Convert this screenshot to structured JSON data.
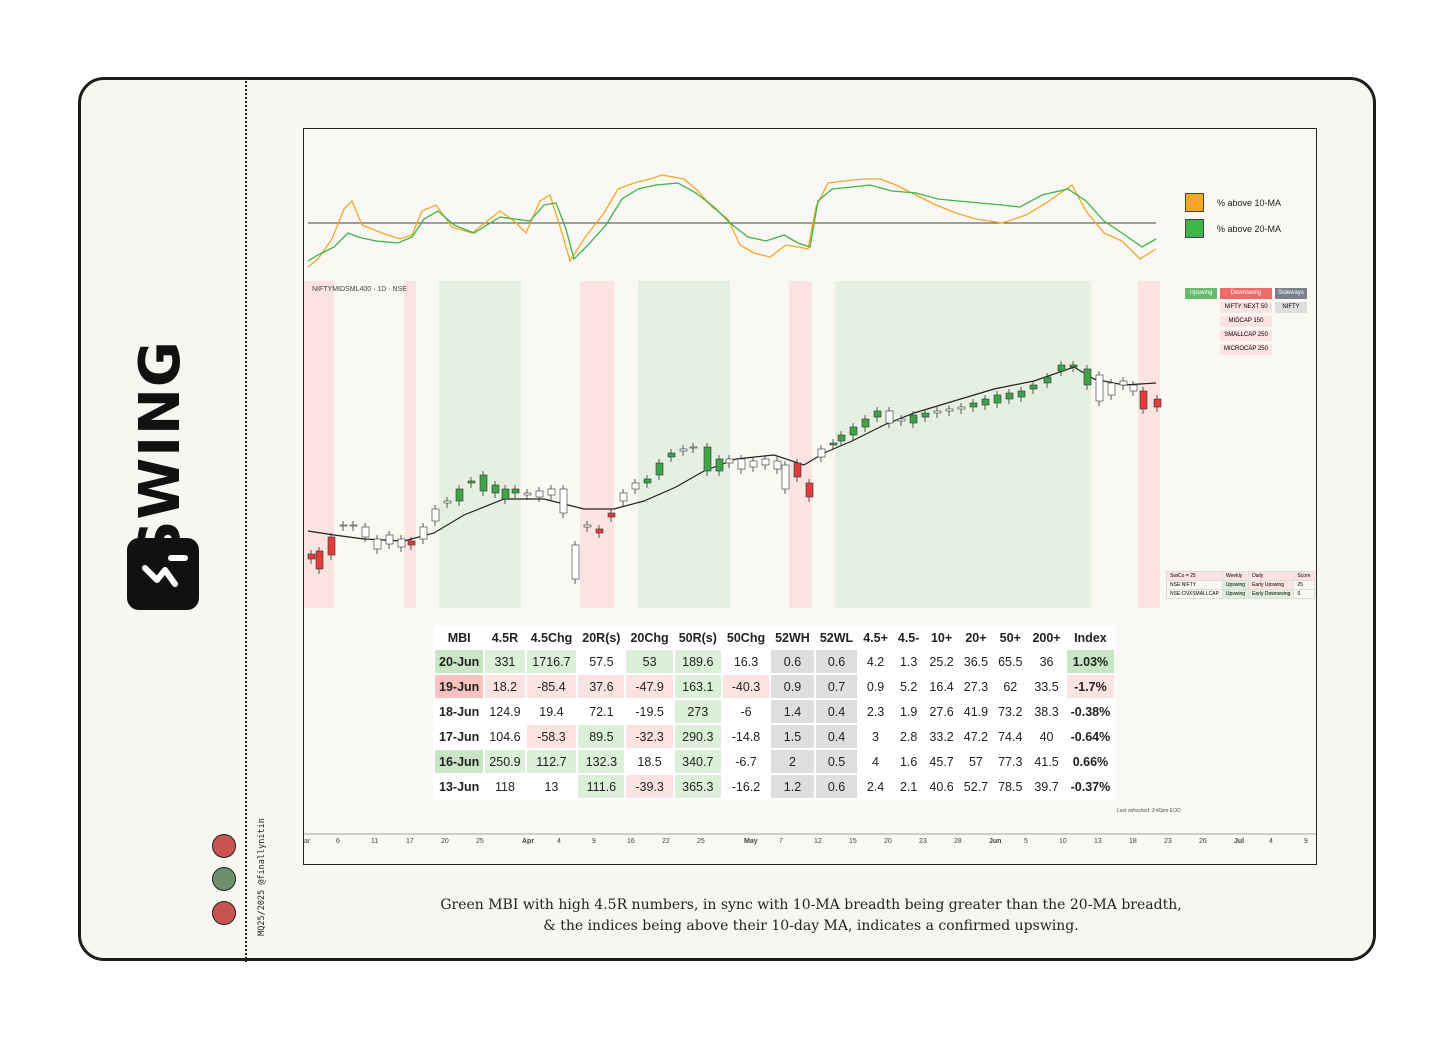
{
  "sidebar": {
    "title": "SWING",
    "credit": "MQ25/2025 @finallynitin",
    "dots": [
      "#c9544f",
      "#6e8f6a",
      "#c9544f"
    ],
    "logo_icon": "swing-logo"
  },
  "chart": {
    "symbol": "NIFTYMIDSML400 · 1D · NSE",
    "legend": [
      {
        "label": "% above 10-MA",
        "color": "#f5a623"
      },
      {
        "label": "% above 20-MA",
        "color": "#3db54a"
      }
    ],
    "regime": {
      "headers": [
        {
          "label": "Upswing",
          "color": "#66bb6a"
        },
        {
          "label": "Downswing",
          "color": "#ef6b6b"
        },
        {
          "label": "Sideways",
          "color": "#7a7f8c"
        }
      ],
      "downswing": [
        "NIFTY NEXT 50",
        "MIDCAP 150",
        "SMALLCAP 250",
        "MICROCAP 250"
      ],
      "sideways": [
        "NIFTY"
      ]
    },
    "swico": {
      "header": [
        "SwiCo = 25",
        "Weekly",
        "Daily",
        "Score"
      ],
      "rows": [
        [
          "NSE:NIFTY",
          "Upswing",
          "Early Upswing",
          "25"
        ],
        [
          "NSE:CNXSMALLCAP",
          "Upswing",
          "Early Downswing",
          "0"
        ]
      ]
    },
    "xaxis": [
      {
        "t": "ar",
        "x": 4
      },
      {
        "t": "6",
        "x": 36
      },
      {
        "t": "11",
        "x": 71
      },
      {
        "t": "17",
        "x": 106
      },
      {
        "t": "20",
        "x": 141
      },
      {
        "t": "25",
        "x": 176
      },
      {
        "t": "Apr",
        "x": 222,
        "b": true
      },
      {
        "t": "4",
        "x": 257
      },
      {
        "t": "9",
        "x": 292
      },
      {
        "t": "16",
        "x": 327
      },
      {
        "t": "22",
        "x": 362
      },
      {
        "t": "25",
        "x": 397
      },
      {
        "t": "May",
        "x": 444,
        "b": true
      },
      {
        "t": "7",
        "x": 479
      },
      {
        "t": "12",
        "x": 514
      },
      {
        "t": "15",
        "x": 549
      },
      {
        "t": "20",
        "x": 584
      },
      {
        "t": "23",
        "x": 619
      },
      {
        "t": "28",
        "x": 654
      },
      {
        "t": "Jun",
        "x": 689,
        "b": true
      },
      {
        "t": "5",
        "x": 724
      },
      {
        "t": "10",
        "x": 759
      },
      {
        "t": "13",
        "x": 794
      },
      {
        "t": "18",
        "x": 829
      },
      {
        "t": "23",
        "x": 864
      },
      {
        "t": "26",
        "x": 899
      },
      {
        "t": "Jul",
        "x": 934,
        "b": true
      },
      {
        "t": "4",
        "x": 969
      },
      {
        "t": "9",
        "x": 1004
      }
    ],
    "refreshed": "Last refreshed: 3:40pm EOD"
  },
  "table": {
    "headers": [
      "MBI",
      "4.5R",
      "4.5Chg",
      "20R(s)",
      "20Chg",
      "50R(s)",
      "50Chg",
      "52WH",
      "52WL",
      "4.5+",
      "4.5-",
      "10+",
      "20+",
      "50+",
      "200+",
      "Index"
    ],
    "rows": [
      [
        "20-Jun",
        "331",
        "1716.7",
        "57.5",
        "53",
        "189.6",
        "16.3",
        "0.6",
        "0.6",
        "4.2",
        "1.3",
        "25.2",
        "36.5",
        "65.5",
        "36",
        "1.03%"
      ],
      [
        "19-Jun",
        "18.2",
        "-85.4",
        "37.6",
        "-47.9",
        "163.1",
        "-40.3",
        "0.9",
        "0.7",
        "0.9",
        "5.2",
        "16.4",
        "27.3",
        "62",
        "33.5",
        "-1.7%"
      ],
      [
        "18-Jun",
        "124.9",
        "19.4",
        "72.1",
        "-19.5",
        "273",
        "-6",
        "1.4",
        "0.4",
        "2.3",
        "1.9",
        "27.6",
        "41.9",
        "73.2",
        "38.3",
        "-0.38%"
      ],
      [
        "17-Jun",
        "104.6",
        "-58.3",
        "89.5",
        "-32.3",
        "290.3",
        "-14.8",
        "1.5",
        "0.4",
        "3",
        "2.8",
        "33.2",
        "47.2",
        "74.4",
        "40",
        "-0.64%"
      ],
      [
        "16-Jun",
        "250.9",
        "112.7",
        "132.3",
        "18.5",
        "340.7",
        "-6.7",
        "2",
        "0.5",
        "4",
        "1.6",
        "45.7",
        "57",
        "77.3",
        "41.5",
        "0.66%"
      ],
      [
        "13-Jun",
        "118",
        "13",
        "111.6",
        "-39.3",
        "365.3",
        "-16.2",
        "1.2",
        "0.6",
        "2.4",
        "2.1",
        "40.6",
        "52.7",
        "78.5",
        "39.7",
        "-0.37%"
      ]
    ],
    "colors": {
      "g": "#dcefd8",
      "G": "#c8e6c4",
      "r": "#fbe3e1",
      "R": "#f6c3c1",
      "s": "#dedede",
      "w": "#ffffff"
    },
    "fills": [
      [
        "G",
        "g",
        "g",
        "w",
        "g",
        "g",
        "w",
        "s",
        "s",
        "w",
        "w",
        "w",
        "w",
        "w",
        "w",
        "G"
      ],
      [
        "R",
        "r",
        "r",
        "r",
        "r",
        "g",
        "r",
        "s",
        "s",
        "w",
        "w",
        "w",
        "w",
        "w",
        "w",
        "r"
      ],
      [
        "w",
        "w",
        "w",
        "w",
        "w",
        "g",
        "w",
        "s",
        "s",
        "w",
        "w",
        "w",
        "w",
        "w",
        "w",
        "w"
      ],
      [
        "w",
        "w",
        "r",
        "g",
        "r",
        "g",
        "w",
        "s",
        "s",
        "w",
        "w",
        "w",
        "w",
        "w",
        "w",
        "w"
      ],
      [
        "G",
        "g",
        "g",
        "g",
        "w",
        "g",
        "w",
        "s",
        "s",
        "w",
        "w",
        "w",
        "w",
        "w",
        "w",
        "w"
      ],
      [
        "w",
        "w",
        "w",
        "g",
        "r",
        "g",
        "w",
        "s",
        "s",
        "w",
        "w",
        "w",
        "w",
        "w",
        "w",
        "w"
      ]
    ]
  },
  "caption": [
    "Green MBI with high 4.5R numbers, in sync with 10-MA breadth being greater than the 20-MA breadth,",
    "& the indices being above their 10-day MA, indicates a confirmed upswing."
  ]
}
